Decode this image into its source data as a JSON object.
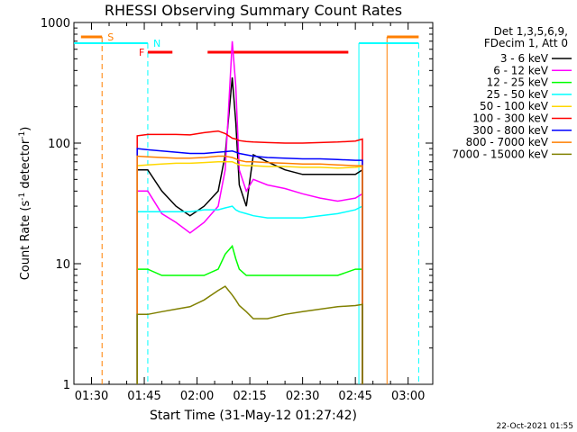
{
  "chart_data": {
    "type": "line",
    "title": "RHESSI Observing Summary Count Rates",
    "xlabel": "Start Time (31-May-12 01:27:42)",
    "ylabel_main": "Count Rate (s",
    "ylabel_sup1": "-1",
    "ylabel_mid": " detector",
    "ylabel_sup2": "-1",
    "ylabel_end": ")",
    "x_range_minutes": [
      1.75,
      3.375
    ],
    "xlim": [
      "01:25:00",
      "03:07:00"
    ],
    "ylim": [
      1,
      1000
    ],
    "y_scale": "log",
    "x_ticks": [
      "01:30",
      "01:45",
      "02:00",
      "02:15",
      "02:30",
      "02:45",
      "03:00"
    ],
    "y_ticks": [
      "1",
      "10",
      "100",
      "1000"
    ],
    "legend_header_1": "Det 1,3,5,6,9,",
    "legend_header_2": "FDecim 1, Att 0",
    "footer_date": "22-Oct-2021 01:55",
    "flags": {
      "S": {
        "label": "S",
        "color": "#ff7f00"
      },
      "N": {
        "label": "N",
        "color": "#00ffff"
      },
      "F": {
        "label": "F",
        "color": "#ff0000"
      }
    },
    "series": [
      {
        "name": "3 - 6 keV",
        "color": "#000000"
      },
      {
        "name": "6 - 12 keV",
        "color": "#ff00ff"
      },
      {
        "name": "12 - 25 keV",
        "color": "#00ff00"
      },
      {
        "name": "25 - 50 keV",
        "color": "#00ffff"
      },
      {
        "name": "50 - 100 keV",
        "color": "#ffd700"
      },
      {
        "name": "100 - 300 keV",
        "color": "#ff0000"
      },
      {
        "name": "300 - 800 keV",
        "color": "#0000ff"
      },
      {
        "name": "800 - 7000 keV",
        "color": "#ff7f00"
      },
      {
        "name": "7000 - 15000 keV",
        "color": "#808000"
      }
    ],
    "data": {
      "t": [
        "01:43",
        "01:46",
        "01:50",
        "01:54",
        "01:58",
        "02:02",
        "02:06",
        "02:08",
        "02:10",
        "02:11",
        "02:12",
        "02:14",
        "02:16",
        "02:20",
        "02:25",
        "02:30",
        "02:35",
        "02:40",
        "02:45",
        "02:47"
      ],
      "3 - 6 keV": [
        60,
        60,
        40,
        30,
        25,
        30,
        40,
        80,
        350,
        150,
        45,
        30,
        80,
        70,
        60,
        55,
        55,
        55,
        55,
        60
      ],
      "6 - 12 keV": [
        40,
        40,
        26,
        22,
        18,
        22,
        30,
        60,
        700,
        300,
        60,
        40,
        50,
        45,
        42,
        38,
        35,
        33,
        35,
        38
      ],
      "12 - 25 keV": [
        9,
        9,
        8,
        8,
        8,
        8,
        9,
        12,
        14,
        11,
        9,
        8,
        8,
        8,
        8,
        8,
        8,
        8,
        9,
        9
      ],
      "25 - 50 keV": [
        27,
        27,
        27,
        27,
        27,
        28,
        28,
        29,
        30,
        28,
        27,
        26,
        25,
        24,
        24,
        24,
        25,
        26,
        28,
        30
      ],
      "50 - 100 keV": [
        65,
        66,
        67,
        68,
        68,
        69,
        70,
        70,
        70,
        68,
        66,
        65,
        65,
        64,
        64,
        63,
        63,
        62,
        63,
        64
      ],
      "100 - 300 keV": [
        115,
        118,
        118,
        118,
        117,
        122,
        126,
        120,
        110,
        108,
        105,
        103,
        102,
        101,
        100,
        100,
        101,
        102,
        104,
        108
      ],
      "300 - 800 keV": [
        90,
        88,
        86,
        84,
        82,
        82,
        84,
        85,
        86,
        84,
        82,
        80,
        78,
        76,
        75,
        74,
        74,
        73,
        72,
        72
      ],
      "800 - 7000 keV": [
        78,
        77,
        76,
        75,
        75,
        76,
        78,
        78,
        76,
        74,
        72,
        70,
        70,
        69,
        68,
        67,
        67,
        66,
        65,
        65
      ],
      "7000 - 15000 keV": [
        3.8,
        3.8,
        4,
        4.2,
        4.4,
        5,
        6,
        6.5,
        5.5,
        5,
        4.5,
        4,
        3.5,
        3.5,
        3.8,
        4,
        4.2,
        4.4,
        4.5,
        4.6
      ]
    },
    "markers": {
      "S_start": "01:27:00",
      "S_end": "01:33:00",
      "S_right_start": "02:54:00",
      "S_right_end": "03:03:00",
      "N_start": "01:25:00",
      "N_end": "01:46:00",
      "N_right_start": "02:46:00",
      "N_right_end": "03:03:00",
      "F_segments": [
        [
          "01:46:00",
          "01:53:00"
        ],
        [
          "02:03:00",
          "02:43:00"
        ]
      ]
    }
  }
}
